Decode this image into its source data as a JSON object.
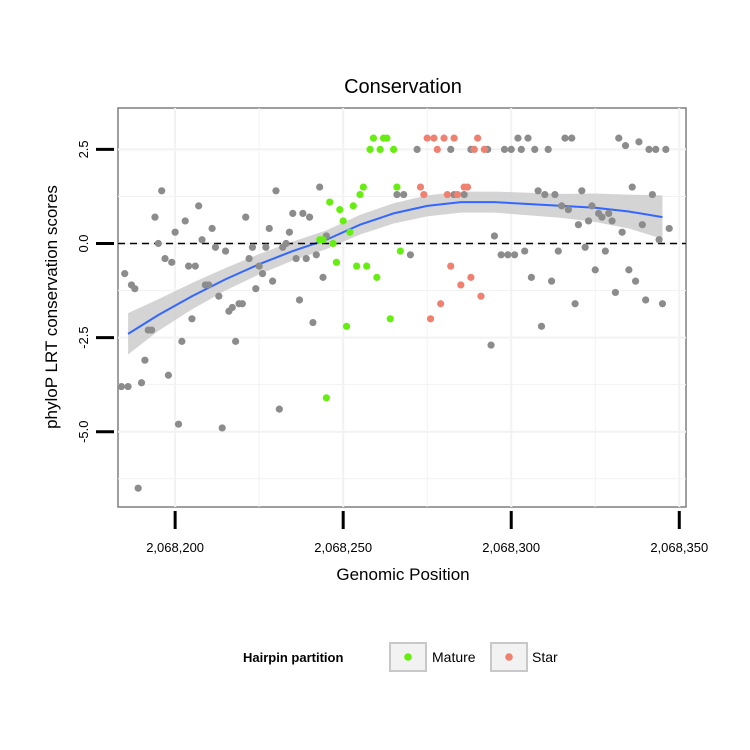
{
  "chart_data": {
    "type": "scatter",
    "title": "Conservation",
    "xlabel": "Genomic Position",
    "ylabel": "phyloP LRT conservation scores",
    "xlim": [
      2068183,
      2068352
    ],
    "ylim": [
      -7.0,
      3.6
    ],
    "x_ticks": [
      2068200,
      2068250,
      2068300,
      2068350
    ],
    "x_tick_labels": [
      "2,068,200",
      "2,068,250",
      "2,068,300",
      "2,068,350"
    ],
    "y_ticks": [
      2.5,
      0.0,
      -2.5,
      -5.0
    ],
    "y_tick_labels": [
      "2.5",
      "0.0",
      "-2.5",
      "-5.0"
    ],
    "grid": true,
    "reference_line": {
      "y": 0,
      "style": "dashed"
    },
    "legend": {
      "title": "Hairpin partition",
      "placement": "bottom",
      "entries": [
        {
          "label": "Mature",
          "color": "#66ee11"
        },
        {
          "label": "Star",
          "color": "#f08070"
        }
      ]
    },
    "colors": {
      "unassigned": "#8c8c8c",
      "mature": "#66ee11",
      "star": "#f08070",
      "smooth": "#3366ff",
      "band": "#cccccc"
    },
    "series": [
      {
        "group": "unassigned",
        "points": [
          [
            2068184,
            -3.8
          ],
          [
            2068185,
            -0.8
          ],
          [
            2068186,
            -3.8
          ],
          [
            2068187,
            -1.1
          ],
          [
            2068188,
            -1.2
          ],
          [
            2068189,
            -6.5
          ],
          [
            2068190,
            -3.7
          ],
          [
            2068191,
            -3.1
          ],
          [
            2068192,
            -2.3
          ],
          [
            2068193,
            -2.3
          ],
          [
            2068194,
            0.7
          ],
          [
            2068195,
            0.0
          ],
          [
            2068196,
            1.4
          ],
          [
            2068197,
            -0.4
          ],
          [
            2068198,
            -3.5
          ],
          [
            2068199,
            -0.5
          ],
          [
            2068200,
            0.3
          ],
          [
            2068201,
            -4.8
          ],
          [
            2068202,
            -2.6
          ],
          [
            2068203,
            0.6
          ],
          [
            2068204,
            -0.6
          ],
          [
            2068205,
            -2.0
          ],
          [
            2068206,
            -0.6
          ],
          [
            2068207,
            1.0
          ],
          [
            2068208,
            0.1
          ],
          [
            2068209,
            -1.1
          ],
          [
            2068210,
            -1.1
          ],
          [
            2068211,
            0.4
          ],
          [
            2068212,
            -0.1
          ],
          [
            2068213,
            -1.4
          ],
          [
            2068214,
            -4.9
          ],
          [
            2068215,
            -0.2
          ],
          [
            2068216,
            -1.8
          ],
          [
            2068217,
            -1.7
          ],
          [
            2068218,
            -2.6
          ],
          [
            2068219,
            -1.6
          ],
          [
            2068220,
            -1.6
          ],
          [
            2068221,
            0.7
          ],
          [
            2068222,
            -0.4
          ],
          [
            2068223,
            -0.1
          ],
          [
            2068224,
            -1.2
          ],
          [
            2068225,
            -0.6
          ],
          [
            2068226,
            -0.8
          ],
          [
            2068227,
            -0.1
          ],
          [
            2068228,
            0.4
          ],
          [
            2068229,
            -1.0
          ],
          [
            2068230,
            1.4
          ],
          [
            2068231,
            -4.4
          ],
          [
            2068232,
            -0.1
          ],
          [
            2068233,
            0.0
          ],
          [
            2068234,
            0.3
          ],
          [
            2068235,
            0.8
          ],
          [
            2068236,
            -0.4
          ],
          [
            2068237,
            -1.5
          ],
          [
            2068238,
            0.8
          ],
          [
            2068239,
            -0.4
          ],
          [
            2068240,
            0.7
          ],
          [
            2068241,
            -2.1
          ],
          [
            2068242,
            -0.3
          ],
          [
            2068243,
            1.5
          ],
          [
            2068244,
            -0.9
          ],
          [
            2068245,
            0.2
          ],
          [
            2068266,
            1.3
          ],
          [
            2068268,
            1.3
          ],
          [
            2068270,
            -0.3
          ],
          [
            2068272,
            2.5
          ],
          [
            2068282,
            2.5
          ],
          [
            2068283,
            1.3
          ],
          [
            2068286,
            1.3
          ],
          [
            2068288,
            2.5
          ],
          [
            2068293,
            2.5
          ],
          [
            2068294,
            -2.7
          ],
          [
            2068295,
            0.2
          ],
          [
            2068297,
            -0.3
          ],
          [
            2068298,
            2.5
          ],
          [
            2068299,
            -0.3
          ],
          [
            2068300,
            2.5
          ],
          [
            2068301,
            -0.3
          ],
          [
            2068302,
            2.8
          ],
          [
            2068303,
            2.5
          ],
          [
            2068304,
            -0.2
          ],
          [
            2068305,
            2.8
          ],
          [
            2068306,
            -0.9
          ],
          [
            2068307,
            2.5
          ],
          [
            2068308,
            1.4
          ],
          [
            2068309,
            -2.2
          ],
          [
            2068310,
            1.3
          ],
          [
            2068311,
            2.5
          ],
          [
            2068312,
            -1.0
          ],
          [
            2068313,
            1.3
          ],
          [
            2068314,
            -0.2
          ],
          [
            2068315,
            1.0
          ],
          [
            2068316,
            2.8
          ],
          [
            2068317,
            0.9
          ],
          [
            2068318,
            2.8
          ],
          [
            2068319,
            -1.6
          ],
          [
            2068320,
            0.5
          ],
          [
            2068321,
            1.4
          ],
          [
            2068322,
            -0.1
          ],
          [
            2068323,
            0.6
          ],
          [
            2068324,
            1.0
          ],
          [
            2068325,
            -0.7
          ],
          [
            2068326,
            0.8
          ],
          [
            2068327,
            0.7
          ],
          [
            2068328,
            -0.2
          ],
          [
            2068329,
            0.8
          ],
          [
            2068330,
            0.6
          ],
          [
            2068331,
            -1.3
          ],
          [
            2068332,
            2.8
          ],
          [
            2068333,
            0.3
          ],
          [
            2068334,
            2.6
          ],
          [
            2068335,
            -0.7
          ],
          [
            2068336,
            1.5
          ],
          [
            2068337,
            -1.0
          ],
          [
            2068338,
            2.7
          ],
          [
            2068339,
            0.5
          ],
          [
            2068340,
            -1.5
          ],
          [
            2068341,
            2.5
          ],
          [
            2068342,
            1.3
          ],
          [
            2068343,
            2.5
          ],
          [
            2068344,
            0.1
          ],
          [
            2068345,
            -1.6
          ],
          [
            2068346,
            2.5
          ],
          [
            2068347,
            0.4
          ]
        ]
      },
      {
        "group": "mature",
        "points": [
          [
            2068243,
            0.1
          ],
          [
            2068244,
            0.1
          ],
          [
            2068245,
            -4.1
          ],
          [
            2068246,
            1.1
          ],
          [
            2068247,
            0.0
          ],
          [
            2068248,
            -0.5
          ],
          [
            2068249,
            0.9
          ],
          [
            2068250,
            0.6
          ],
          [
            2068251,
            -2.2
          ],
          [
            2068252,
            0.3
          ],
          [
            2068253,
            1.0
          ],
          [
            2068254,
            -0.6
          ],
          [
            2068255,
            1.3
          ],
          [
            2068256,
            1.5
          ],
          [
            2068257,
            -0.6
          ],
          [
            2068258,
            2.5
          ],
          [
            2068259,
            2.8
          ],
          [
            2068260,
            -0.9
          ],
          [
            2068261,
            2.5
          ],
          [
            2068262,
            2.8
          ],
          [
            2068263,
            2.8
          ],
          [
            2068264,
            -2.0
          ],
          [
            2068265,
            2.5
          ],
          [
            2068266,
            1.5
          ],
          [
            2068267,
            -0.2
          ]
        ]
      },
      {
        "group": "star",
        "points": [
          [
            2068273,
            1.5
          ],
          [
            2068274,
            1.3
          ],
          [
            2068275,
            2.8
          ],
          [
            2068276,
            -2.0
          ],
          [
            2068277,
            2.8
          ],
          [
            2068278,
            2.5
          ],
          [
            2068279,
            -1.6
          ],
          [
            2068280,
            2.8
          ],
          [
            2068281,
            1.3
          ],
          [
            2068282,
            -0.6
          ],
          [
            2068283,
            2.8
          ],
          [
            2068284,
            1.3
          ],
          [
            2068285,
            -1.1
          ],
          [
            2068286,
            1.5
          ],
          [
            2068287,
            1.5
          ],
          [
            2068288,
            -0.9
          ],
          [
            2068289,
            2.5
          ],
          [
            2068290,
            2.8
          ],
          [
            2068291,
            -1.4
          ],
          [
            2068292,
            2.5
          ]
        ]
      }
    ],
    "smooth": {
      "x": [
        2068186,
        2068195,
        2068205,
        2068215,
        2068225,
        2068235,
        2068245,
        2068255,
        2068265,
        2068275,
        2068285,
        2068295,
        2068305,
        2068315,
        2068325,
        2068335,
        2068345
      ],
      "y": [
        -2.4,
        -1.9,
        -1.4,
        -0.95,
        -0.55,
        -0.2,
        0.1,
        0.5,
        0.8,
        1.0,
        1.1,
        1.1,
        1.05,
        1.0,
        0.95,
        0.85,
        0.7
      ],
      "band_width": [
        0.55,
        0.42,
        0.35,
        0.3,
        0.27,
        0.25,
        0.25,
        0.26,
        0.27,
        0.28,
        0.28,
        0.28,
        0.3,
        0.32,
        0.38,
        0.45,
        0.58
      ]
    }
  }
}
